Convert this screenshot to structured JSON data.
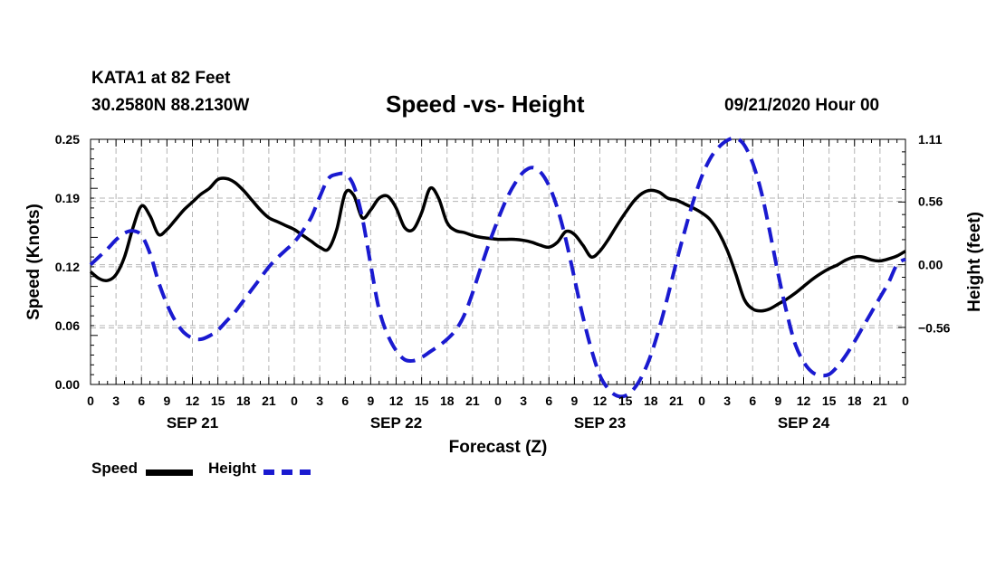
{
  "header": {
    "station": "KATA1 at 82 Feet",
    "coords": "30.2580N 88.2130W",
    "title": "Speed -vs- Height",
    "datetime": "09/21/2020 Hour 00"
  },
  "colors": {
    "speed": "#000000",
    "height": "#1a1ad0",
    "grid": "#b4b4b4"
  },
  "legend": {
    "speed_label": "Speed",
    "height_label": "Height"
  },
  "chart_data": {
    "type": "line",
    "title": "Speed -vs- Height",
    "xlabel": "Forecast (Z)",
    "ylabel": "Speed (Knots)",
    "y2label": "Height (feet)",
    "xlim": [
      0,
      96
    ],
    "ylim": [
      0,
      0.25
    ],
    "y2lim": [
      -1.06,
      1.11
    ],
    "x_ticks": [
      0,
      3,
      6,
      9,
      12,
      15,
      18,
      21,
      24,
      27,
      30,
      33,
      36,
      39,
      42,
      45,
      48,
      51,
      54,
      57,
      60,
      63,
      66,
      69,
      72,
      75,
      78,
      81,
      84,
      87,
      90,
      93,
      96
    ],
    "x_tick_labels": [
      "0",
      "3",
      "6",
      "9",
      "12",
      "15",
      "18",
      "21",
      "0",
      "3",
      "6",
      "9",
      "12",
      "15",
      "18",
      "21",
      "0",
      "3",
      "6",
      "9",
      "12",
      "15",
      "18",
      "21",
      "0",
      "3",
      "6",
      "9",
      "12",
      "15",
      "18",
      "21",
      "0"
    ],
    "date_labels": [
      {
        "x": 12,
        "label": "SEP 21"
      },
      {
        "x": 36,
        "label": "SEP 22"
      },
      {
        "x": 60,
        "label": "SEP 23"
      },
      {
        "x": 84,
        "label": "SEP 24"
      }
    ],
    "y_ticks": [
      0.0,
      0.06,
      0.12,
      0.19,
      0.25
    ],
    "y_tick_labels": [
      "0.00",
      "0.06",
      "0.12",
      "0.19",
      "0.25"
    ],
    "y2_ticks": [
      1.11,
      0.56,
      0.0,
      -0.56
    ],
    "y2_tick_labels": [
      "1.11",
      "0.56",
      "0.00",
      "−0.56"
    ],
    "series": [
      {
        "name": "Speed",
        "axis": "left",
        "style": "solid",
        "x": [
          0,
          1,
          2,
          3,
          4,
          5,
          6,
          7,
          8,
          9,
          10,
          11,
          12,
          13,
          14,
          15,
          16,
          17,
          18,
          19,
          20,
          21,
          22,
          23,
          24,
          25,
          26,
          27,
          28,
          29,
          30,
          31,
          32,
          33,
          34,
          35,
          36,
          37,
          38,
          39,
          40,
          41,
          42,
          43,
          44,
          45,
          46,
          47,
          48,
          49,
          50,
          51,
          52,
          53,
          54,
          55,
          56,
          57,
          58,
          59,
          60,
          61,
          62,
          63,
          64,
          65,
          66,
          67,
          68,
          69,
          70,
          71,
          72,
          73,
          74,
          75,
          76,
          77,
          78,
          79,
          80,
          81,
          82,
          83,
          84,
          85,
          86,
          87,
          88,
          89,
          90,
          91,
          92,
          93,
          94,
          95,
          96
        ],
        "values": [
          0.115,
          0.108,
          0.106,
          0.112,
          0.13,
          0.16,
          0.182,
          0.172,
          0.153,
          0.158,
          0.168,
          0.178,
          0.186,
          0.194,
          0.2,
          0.209,
          0.21,
          0.206,
          0.198,
          0.188,
          0.178,
          0.17,
          0.166,
          0.162,
          0.158,
          0.152,
          0.146,
          0.14,
          0.138,
          0.158,
          0.195,
          0.193,
          0.17,
          0.178,
          0.19,
          0.192,
          0.18,
          0.16,
          0.158,
          0.175,
          0.2,
          0.19,
          0.165,
          0.157,
          0.155,
          0.152,
          0.15,
          0.149,
          0.148,
          0.148,
          0.148,
          0.147,
          0.145,
          0.142,
          0.14,
          0.145,
          0.156,
          0.153,
          0.142,
          0.13,
          0.136,
          0.148,
          0.162,
          0.175,
          0.187,
          0.195,
          0.198,
          0.196,
          0.19,
          0.188,
          0.184,
          0.18,
          0.175,
          0.168,
          0.155,
          0.137,
          0.113,
          0.087,
          0.077,
          0.075,
          0.077,
          0.082,
          0.087,
          0.093,
          0.1,
          0.107,
          0.113,
          0.118,
          0.122,
          0.127,
          0.13,
          0.13,
          0.127,
          0.126,
          0.128,
          0.131,
          0.136
        ]
      },
      {
        "name": "Height",
        "axis": "right",
        "style": "dashed",
        "x": [
          0,
          1,
          2,
          3,
          4,
          5,
          6,
          7,
          8,
          9,
          10,
          11,
          12,
          13,
          14,
          15,
          16,
          17,
          18,
          19,
          20,
          21,
          22,
          23,
          24,
          25,
          26,
          27,
          28,
          29,
          30,
          31,
          32,
          33,
          34,
          35,
          36,
          37,
          38,
          39,
          40,
          41,
          42,
          43,
          44,
          45,
          46,
          47,
          48,
          49,
          50,
          51,
          52,
          53,
          54,
          55,
          56,
          57,
          58,
          59,
          60,
          61,
          62,
          63,
          64,
          65,
          66,
          67,
          68,
          69,
          70,
          71,
          72,
          73,
          74,
          75,
          76,
          77,
          78,
          79,
          80,
          81,
          82,
          83,
          84,
          85,
          86,
          87,
          88,
          89,
          90,
          91,
          92,
          93,
          94,
          95,
          96
        ],
        "values": [
          0.0,
          0.07,
          0.14,
          0.22,
          0.28,
          0.3,
          0.26,
          0.1,
          -0.15,
          -0.35,
          -0.5,
          -0.6,
          -0.65,
          -0.66,
          -0.63,
          -0.58,
          -0.5,
          -0.42,
          -0.32,
          -0.22,
          -0.12,
          -0.02,
          0.06,
          0.13,
          0.2,
          0.3,
          0.42,
          0.6,
          0.76,
          0.8,
          0.8,
          0.7,
          0.42,
          0.0,
          -0.4,
          -0.62,
          -0.76,
          -0.84,
          -0.85,
          -0.82,
          -0.77,
          -0.72,
          -0.66,
          -0.58,
          -0.45,
          -0.25,
          -0.02,
          0.2,
          0.4,
          0.58,
          0.72,
          0.82,
          0.86,
          0.82,
          0.7,
          0.5,
          0.22,
          -0.12,
          -0.46,
          -0.75,
          -0.98,
          -1.1,
          -1.16,
          -1.16,
          -1.1,
          -0.98,
          -0.8,
          -0.56,
          -0.28,
          0.02,
          0.3,
          0.56,
          0.78,
          0.94,
          1.04,
          1.1,
          1.12,
          1.06,
          0.9,
          0.65,
          0.3,
          -0.08,
          -0.42,
          -0.7,
          -0.86,
          -0.95,
          -0.98,
          -0.97,
          -0.9,
          -0.8,
          -0.68,
          -0.55,
          -0.42,
          -0.29,
          -0.16,
          0.0,
          0.05
        ]
      }
    ],
    "grid": true,
    "legend": "bottom-left"
  }
}
